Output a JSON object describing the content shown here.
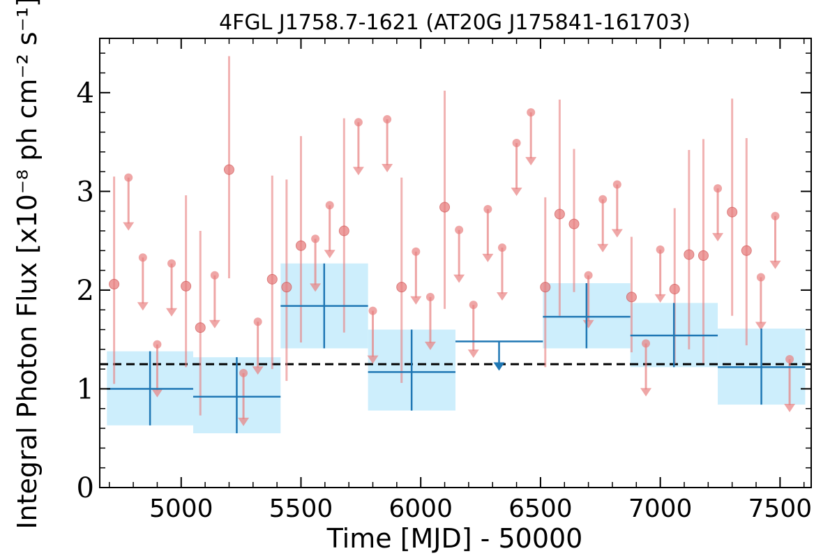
{
  "chart_data": {
    "type": "scatter",
    "title": "4FGL J1758.7-1621 (AT20G J175841-161703)",
    "xlabel": "Time [MJD] - 50000",
    "ylabel": "Integral Photon Flux [x10⁻⁸ ph cm⁻² s⁻¹]",
    "xlim": [
      4660,
      7630
    ],
    "ylim": [
      0,
      4.55
    ],
    "xticks": [
      5000,
      5500,
      6000,
      6500,
      7000,
      7500
    ],
    "yticks": [
      0,
      1,
      2,
      3,
      4
    ],
    "grid": false,
    "mean_flux": 1.25,
    "colors": {
      "short_bins": "#e88080",
      "long_bins": "#1f77b4",
      "long_bins_band": "#cdeefc",
      "mean_line": "#000000"
    },
    "long_bins": [
      {
        "x_start": 4690,
        "x_end": 5050,
        "x_center": 4870,
        "flux": 1.0,
        "err_low": 0.63,
        "err_high": 1.38,
        "upper_limit": false
      },
      {
        "x_start": 5050,
        "x_end": 5415,
        "x_center": 5232,
        "flux": 0.92,
        "err_low": 0.55,
        "err_high": 1.32,
        "upper_limit": false
      },
      {
        "x_start": 5415,
        "x_end": 5780,
        "x_center": 5597,
        "flux": 1.84,
        "err_low": 1.41,
        "err_high": 2.27,
        "upper_limit": false
      },
      {
        "x_start": 5780,
        "x_end": 6145,
        "x_center": 5962,
        "flux": 1.17,
        "err_low": 0.78,
        "err_high": 1.6,
        "upper_limit": false
      },
      {
        "x_start": 6145,
        "x_end": 6510,
        "x_center": 6327,
        "flux": 1.48,
        "upper_limit": true
      },
      {
        "x_start": 6510,
        "x_end": 6875,
        "x_center": 6692,
        "flux": 1.73,
        "err_low": 1.41,
        "err_high": 2.07,
        "upper_limit": false
      },
      {
        "x_start": 6875,
        "x_end": 7240,
        "x_center": 7057,
        "flux": 1.54,
        "err_low": 1.22,
        "err_high": 1.87,
        "upper_limit": false
      },
      {
        "x_start": 7240,
        "x_end": 7605,
        "x_center": 7422,
        "flux": 1.22,
        "err_low": 0.84,
        "err_high": 1.61,
        "upper_limit": false
      }
    ],
    "short_bins": [
      {
        "x": 4720,
        "flux": 2.06,
        "err_low": 1.05,
        "err_high": 3.15,
        "upper_limit": false
      },
      {
        "x": 4780,
        "flux": 3.14,
        "upper_limit": true
      },
      {
        "x": 4840,
        "flux": 2.33,
        "upper_limit": true
      },
      {
        "x": 4900,
        "flux": 1.45,
        "upper_limit": true
      },
      {
        "x": 4960,
        "flux": 2.27,
        "upper_limit": true
      },
      {
        "x": 5020,
        "flux": 2.04,
        "err_low": 1.22,
        "err_high": 2.96,
        "upper_limit": false
      },
      {
        "x": 5080,
        "flux": 1.62,
        "err_low": 0.73,
        "err_high": 2.6,
        "upper_limit": false
      },
      {
        "x": 5140,
        "flux": 2.15,
        "upper_limit": true
      },
      {
        "x": 5200,
        "flux": 3.22,
        "err_low": 2.12,
        "err_high": 4.37,
        "upper_limit": false
      },
      {
        "x": 5260,
        "flux": 1.16,
        "upper_limit": true
      },
      {
        "x": 5320,
        "flux": 1.68,
        "upper_limit": true
      },
      {
        "x": 5380,
        "flux": 2.11,
        "err_low": 1.2,
        "err_high": 3.16,
        "upper_limit": false
      },
      {
        "x": 5440,
        "flux": 2.03,
        "err_low": 1.08,
        "err_high": 3.12,
        "upper_limit": false
      },
      {
        "x": 5500,
        "flux": 2.45,
        "err_low": 1.47,
        "err_high": 3.56,
        "upper_limit": false
      },
      {
        "x": 5560,
        "flux": 2.52,
        "upper_limit": true
      },
      {
        "x": 5620,
        "flux": 2.86,
        "upper_limit": true
      },
      {
        "x": 5680,
        "flux": 2.6,
        "err_low": 1.57,
        "err_high": 3.74,
        "upper_limit": false
      },
      {
        "x": 5740,
        "flux": 3.7,
        "upper_limit": true
      },
      {
        "x": 5800,
        "flux": 1.79,
        "upper_limit": true
      },
      {
        "x": 5860,
        "flux": 3.73,
        "upper_limit": true
      },
      {
        "x": 5920,
        "flux": 2.03,
        "err_low": 1.06,
        "err_high": 3.14,
        "upper_limit": false
      },
      {
        "x": 5980,
        "flux": 2.39,
        "upper_limit": true
      },
      {
        "x": 6040,
        "flux": 1.93,
        "upper_limit": true
      },
      {
        "x": 6100,
        "flux": 2.84,
        "err_low": 1.81,
        "err_high": 4.02,
        "upper_limit": false
      },
      {
        "x": 6160,
        "flux": 2.61,
        "upper_limit": true
      },
      {
        "x": 6220,
        "flux": 1.85,
        "upper_limit": true
      },
      {
        "x": 6280,
        "flux": 2.82,
        "upper_limit": true
      },
      {
        "x": 6340,
        "flux": 2.43,
        "upper_limit": true
      },
      {
        "x": 6400,
        "flux": 3.49,
        "upper_limit": true
      },
      {
        "x": 6460,
        "flux": 3.8,
        "upper_limit": true
      },
      {
        "x": 6520,
        "flux": 2.03,
        "err_low": 1.22,
        "err_high": 2.94,
        "upper_limit": false
      },
      {
        "x": 6580,
        "flux": 2.77,
        "err_low": 1.74,
        "err_high": 3.93,
        "upper_limit": false
      },
      {
        "x": 6640,
        "flux": 2.67,
        "err_low": 1.98,
        "err_high": 3.43,
        "upper_limit": false
      },
      {
        "x": 6700,
        "flux": 2.15,
        "upper_limit": true
      },
      {
        "x": 6760,
        "flux": 2.92,
        "upper_limit": true
      },
      {
        "x": 6820,
        "flux": 3.07,
        "upper_limit": true
      },
      {
        "x": 6880,
        "flux": 1.93,
        "err_low": 1.37,
        "err_high": 2.54,
        "upper_limit": false
      },
      {
        "x": 6940,
        "flux": 1.46,
        "upper_limit": true
      },
      {
        "x": 7000,
        "flux": 2.41,
        "upper_limit": true
      },
      {
        "x": 7060,
        "flux": 2.01,
        "err_low": 1.25,
        "err_high": 2.83,
        "upper_limit": false
      },
      {
        "x": 7120,
        "flux": 2.36,
        "err_low": 1.4,
        "err_high": 3.42,
        "upper_limit": false
      },
      {
        "x": 7180,
        "flux": 2.35,
        "err_low": 1.26,
        "err_high": 3.53,
        "upper_limit": false
      },
      {
        "x": 7240,
        "flux": 3.03,
        "upper_limit": true
      },
      {
        "x": 7300,
        "flux": 2.79,
        "err_low": 1.74,
        "err_high": 3.94,
        "upper_limit": false
      },
      {
        "x": 7360,
        "flux": 2.4,
        "err_low": 1.44,
        "err_high": 3.54,
        "upper_limit": false
      },
      {
        "x": 7420,
        "flux": 2.13,
        "upper_limit": true
      },
      {
        "x": 7480,
        "flux": 2.75,
        "upper_limit": true
      },
      {
        "x": 7540,
        "flux": 1.3,
        "upper_limit": true
      }
    ]
  }
}
